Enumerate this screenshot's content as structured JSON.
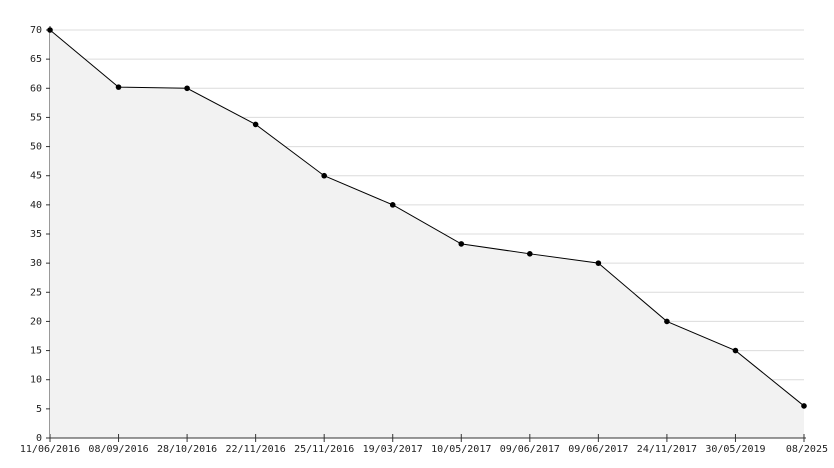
{
  "chart_data": {
    "type": "area",
    "categories": [
      "11/06/2016",
      "08/09/2016",
      "28/10/2016",
      "22/11/2016",
      "25/11/2016",
      "19/03/2017",
      "10/05/2017",
      "09/06/2017",
      "09/06/2017",
      "24/11/2017",
      "30/05/2019",
      "08/2025"
    ],
    "values": [
      70,
      60.2,
      60,
      53.8,
      45,
      40,
      33.3,
      31.6,
      30,
      20,
      15,
      5.5
    ],
    "color": "#000000",
    "fill": "#f2f2f2",
    "ylim": [
      0,
      70
    ],
    "yticks": [
      0,
      5,
      10,
      15,
      20,
      25,
      30,
      35,
      40,
      45,
      50,
      55,
      60,
      65,
      70
    ],
    "grid": true
  }
}
